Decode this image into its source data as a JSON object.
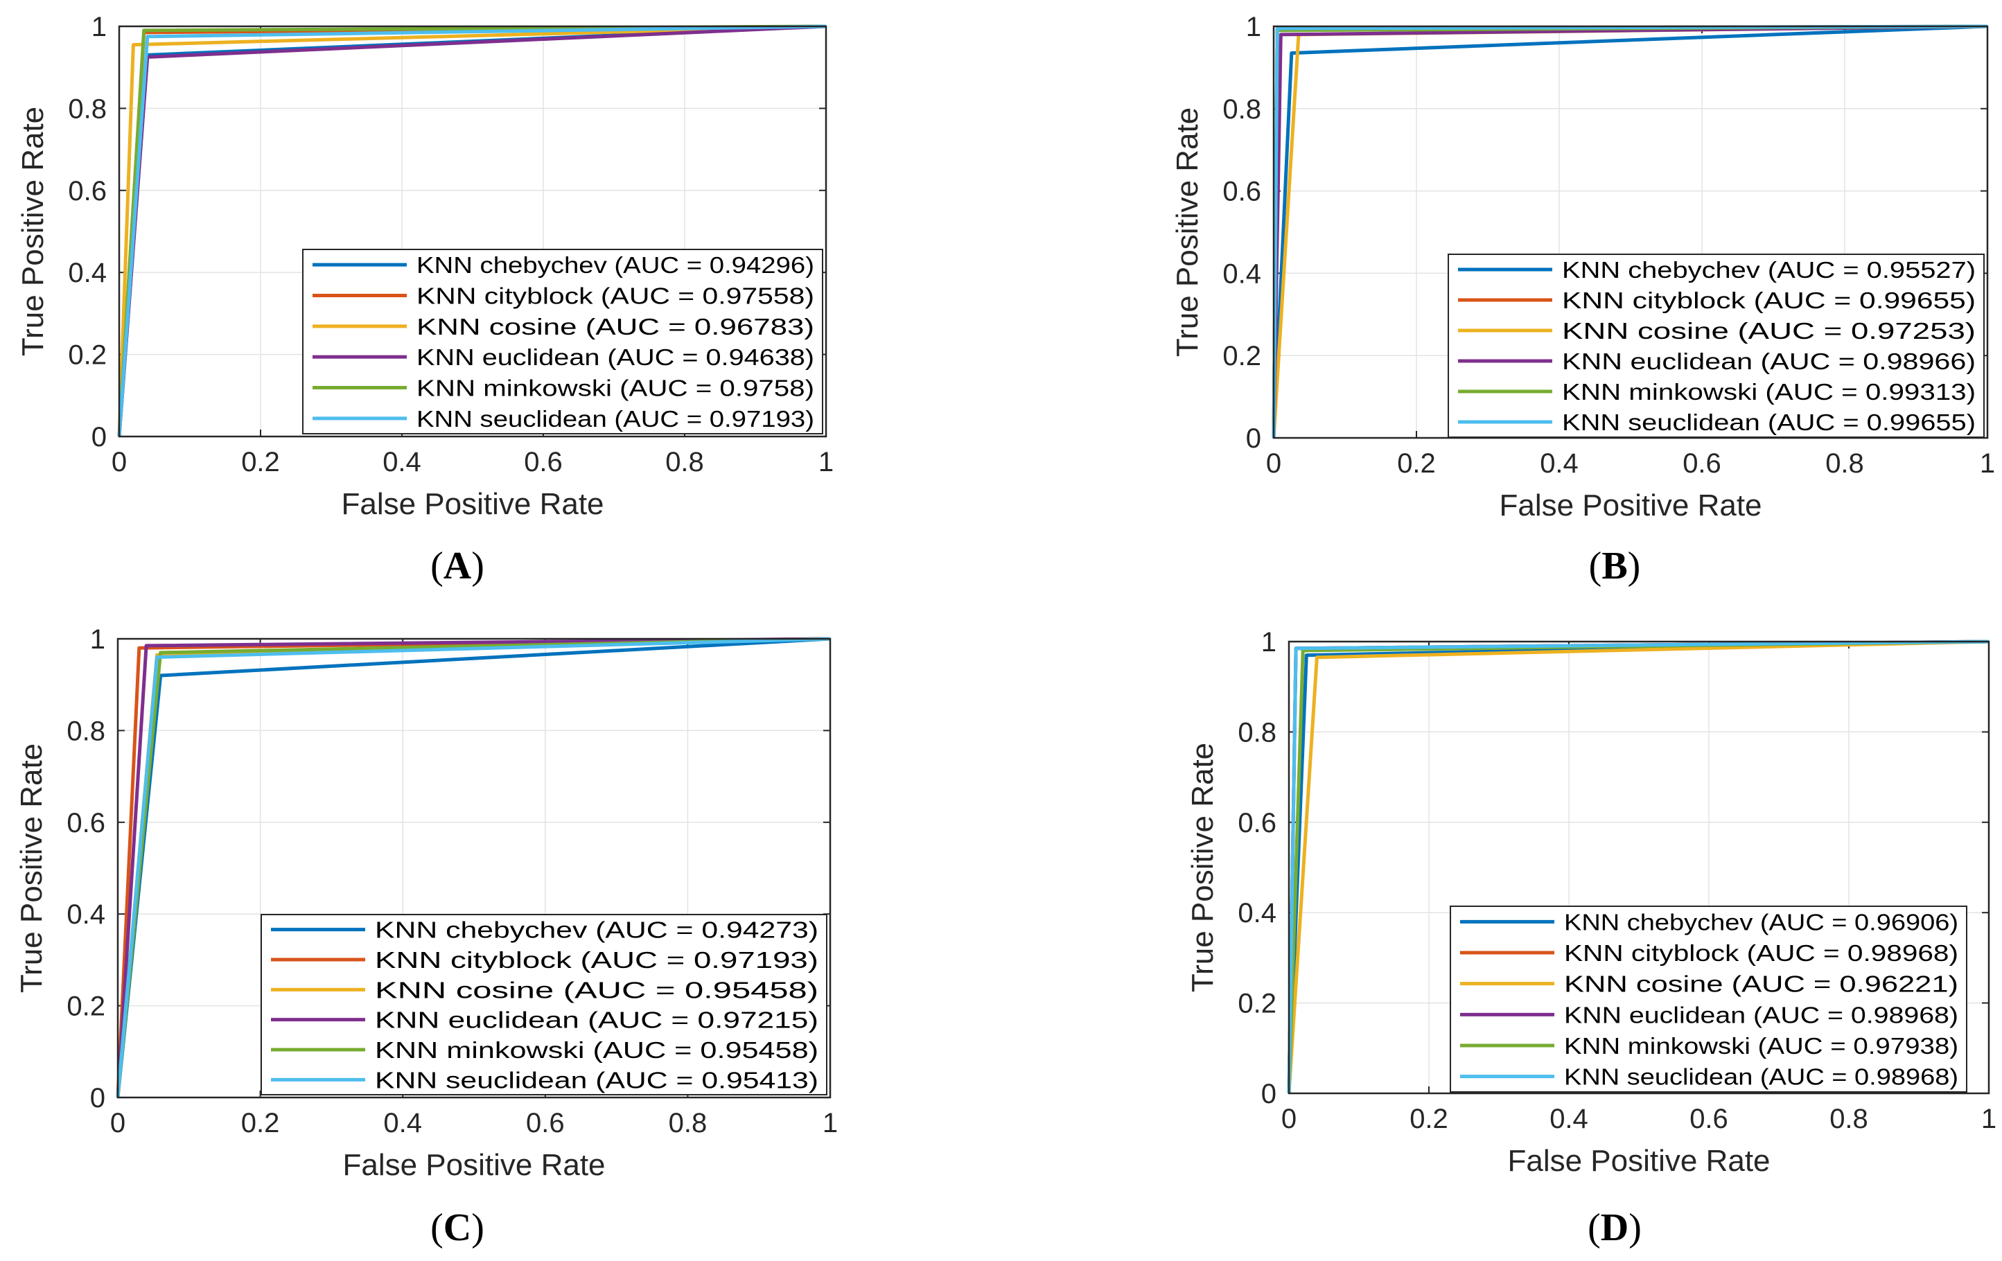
{
  "figure": {
    "series_colors": [
      "#0072BD",
      "#D95319",
      "#EDB120",
      "#7E2F8E",
      "#77AC30",
      "#4DBEEE"
    ]
  },
  "chart_data": [
    {
      "type": "line",
      "panel_label": "A",
      "xlabel": "False Positive Rate",
      "ylabel": "True Positive Rate",
      "xlim": [
        0,
        1
      ],
      "ylim": [
        0,
        1
      ],
      "xticks": [
        "0",
        "0.2",
        "0.4",
        "0.6",
        "0.8",
        "1"
      ],
      "yticks": [
        "0",
        "0.2",
        "0.4",
        "0.6",
        "0.8",
        "1"
      ],
      "grid": true,
      "legend_position": "bottom-right",
      "series": [
        {
          "name": "KNN chebychev (AUC = 0.94296)",
          "x": [
            0,
            0.04,
            1
          ],
          "y": [
            0,
            0.93,
            1
          ]
        },
        {
          "name": "KNN cityblock (AUC = 0.97558)",
          "x": [
            0,
            0.035,
            1
          ],
          "y": [
            0,
            0.985,
            1
          ]
        },
        {
          "name": "KNN cosine (AUC = 0.96783)",
          "x": [
            0,
            0.02,
            1
          ],
          "y": [
            0,
            0.955,
            1
          ]
        },
        {
          "name": "KNN euclidean (AUC = 0.94638)",
          "x": [
            0,
            0.04,
            1
          ],
          "y": [
            0,
            0.925,
            1
          ]
        },
        {
          "name": "KNN minkowski (AUC = 0.9758)",
          "x": [
            0,
            0.035,
            1
          ],
          "y": [
            0,
            0.99,
            1
          ]
        },
        {
          "name": "KNN seuclidean (AUC = 0.97193)",
          "x": [
            0,
            0.04,
            1
          ],
          "y": [
            0,
            0.975,
            1
          ]
        }
      ]
    },
    {
      "type": "line",
      "panel_label": "B",
      "xlabel": "False Positive Rate",
      "ylabel": "True Positive Rate",
      "xlim": [
        0,
        1
      ],
      "ylim": [
        0,
        1
      ],
      "xticks": [
        "0",
        "0.2",
        "0.4",
        "0.6",
        "0.8",
        "1"
      ],
      "yticks": [
        "0",
        "0.2",
        "0.4",
        "0.6",
        "0.8",
        "1"
      ],
      "grid": true,
      "legend_position": "bottom-right",
      "series": [
        {
          "name": "KNN chebychev (AUC = 0.95527)",
          "x": [
            0,
            0.025,
            1
          ],
          "y": [
            0,
            0.935,
            1
          ]
        },
        {
          "name": "KNN cityblock (AUC = 0.99655)",
          "x": [
            0,
            0.005,
            1
          ],
          "y": [
            0,
            0.995,
            1
          ]
        },
        {
          "name": "KNN cosine (AUC = 0.97253)",
          "x": [
            0,
            0.035,
            1
          ],
          "y": [
            0,
            0.98,
            1
          ]
        },
        {
          "name": "KNN euclidean (AUC = 0.98966)",
          "x": [
            0,
            0.01,
            1
          ],
          "y": [
            0,
            0.98,
            1
          ]
        },
        {
          "name": "KNN minkowski (AUC = 0.99313)",
          "x": [
            0,
            0.005,
            1
          ],
          "y": [
            0,
            0.99,
            1
          ]
        },
        {
          "name": "KNN seuclidean (AUC = 0.99655)",
          "x": [
            0,
            0.005,
            1
          ],
          "y": [
            0,
            0.995,
            1
          ]
        }
      ]
    },
    {
      "type": "line",
      "panel_label": "C",
      "xlabel": "False Positive Rate",
      "ylabel": "True Positive Rate",
      "xlim": [
        0,
        1
      ],
      "ylim": [
        0,
        1
      ],
      "xticks": [
        "0",
        "0.2",
        "0.4",
        "0.6",
        "0.8",
        "1"
      ],
      "yticks": [
        "0",
        "0.2",
        "0.4",
        "0.6",
        "0.8",
        "1"
      ],
      "grid": true,
      "legend_position": "bottom-right",
      "series": [
        {
          "name": "KNN chebychev (AUC = 0.94273)",
          "x": [
            0,
            0.06,
            1
          ],
          "y": [
            0,
            0.92,
            1
          ]
        },
        {
          "name": "KNN cityblock (AUC = 0.97193)",
          "x": [
            0,
            0.03,
            1
          ],
          "y": [
            0,
            0.98,
            1
          ]
        },
        {
          "name": "KNN cosine (AUC = 0.95458)",
          "x": [
            0,
            0.055,
            1
          ],
          "y": [
            0,
            0.965,
            1
          ]
        },
        {
          "name": "KNN euclidean (AUC = 0.97215)",
          "x": [
            0,
            0.04,
            1
          ],
          "y": [
            0,
            0.985,
            1
          ]
        },
        {
          "name": "KNN minkowski (AUC = 0.95458)",
          "x": [
            0,
            0.06,
            1
          ],
          "y": [
            0,
            0.97,
            1
          ]
        },
        {
          "name": "KNN seuclidean (AUC = 0.95413)",
          "x": [
            0,
            0.055,
            1
          ],
          "y": [
            0,
            0.96,
            1
          ]
        }
      ]
    },
    {
      "type": "line",
      "panel_label": "D",
      "xlabel": "False Positive Rate",
      "ylabel": "True Positive Rate",
      "xlim": [
        0,
        1
      ],
      "ylim": [
        0,
        1
      ],
      "xticks": [
        "0",
        "0.2",
        "0.4",
        "0.6",
        "0.8",
        "1"
      ],
      "yticks": [
        "0",
        "0.2",
        "0.4",
        "0.6",
        "0.8",
        "1"
      ],
      "grid": true,
      "legend_position": "bottom-right",
      "series": [
        {
          "name": "KNN chebychev (AUC = 0.96906)",
          "x": [
            0,
            0.025,
            1
          ],
          "y": [
            0,
            0.97,
            1
          ]
        },
        {
          "name": "KNN cityblock (AUC = 0.98968)",
          "x": [
            0,
            0.01,
            1
          ],
          "y": [
            0,
            0.985,
            1
          ]
        },
        {
          "name": "KNN cosine (AUC = 0.96221)",
          "x": [
            0,
            0.04,
            1
          ],
          "y": [
            0,
            0.965,
            1
          ]
        },
        {
          "name": "KNN euclidean (AUC = 0.98968)",
          "x": [
            0,
            0.01,
            1
          ],
          "y": [
            0,
            0.985,
            1
          ]
        },
        {
          "name": "KNN minkowski (AUC = 0.97938)",
          "x": [
            0,
            0.02,
            1
          ],
          "y": [
            0,
            0.98,
            1
          ]
        },
        {
          "name": "KNN seuclidean (AUC = 0.98968)",
          "x": [
            0,
            0.01,
            1
          ],
          "y": [
            0,
            0.985,
            1
          ]
        }
      ]
    }
  ]
}
